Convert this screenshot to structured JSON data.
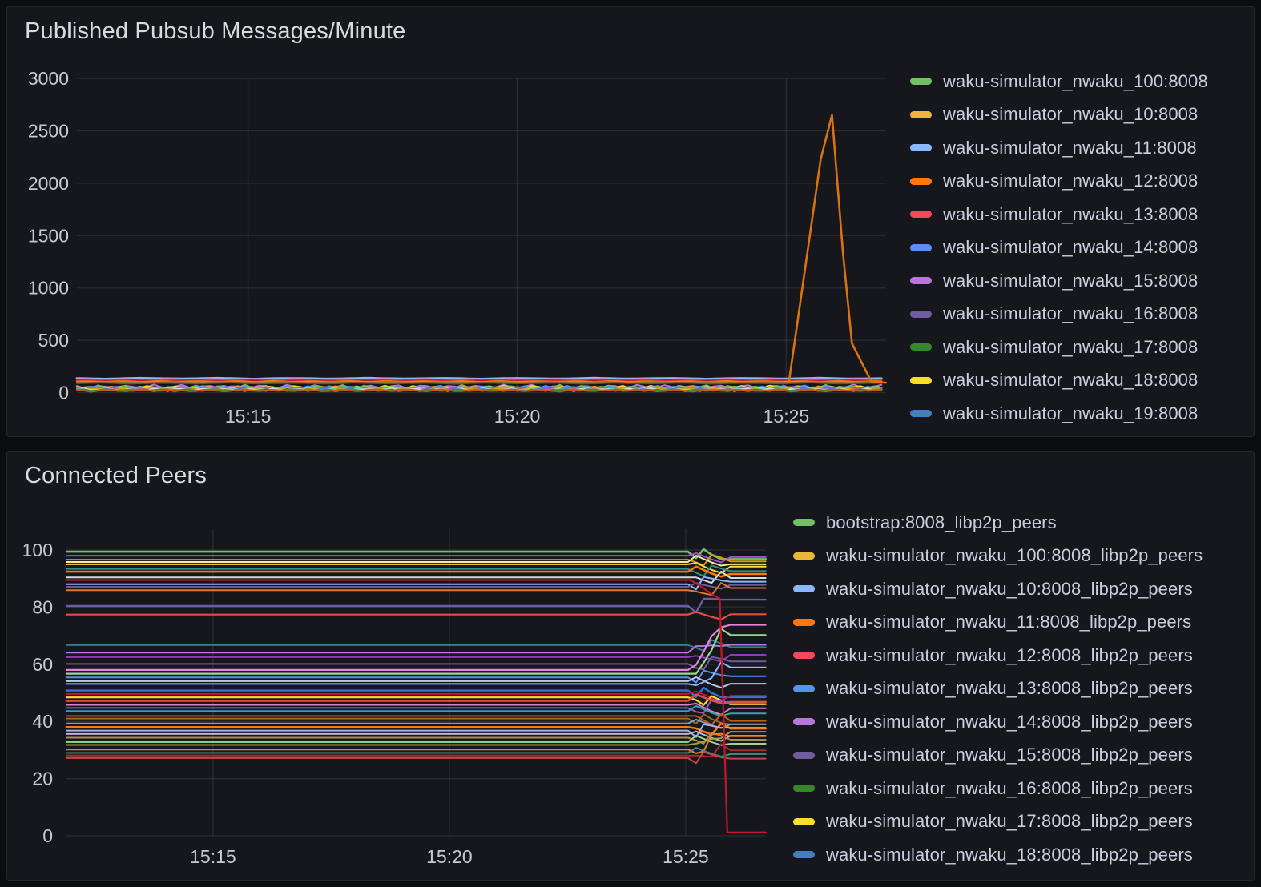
{
  "dashboard": {
    "background": "#0c0d10",
    "panel_background": "#16171d",
    "panel_border": "#24262c",
    "grid_color": "rgba(204,204,220,0.10)",
    "tick_text_color": "#c7c8d2",
    "legend_text_color": "#ccccdc",
    "title_text_color": "#d9dade"
  },
  "chart_data": [
    {
      "type": "line",
      "title": "Published Pubsub Messages/Minute",
      "xlabel": "",
      "ylabel": "",
      "ylim": [
        0,
        3000
      ],
      "y_ticks": [
        "0",
        "500",
        "1000",
        "1500",
        "2000",
        "2500",
        "3000"
      ],
      "y_tick_values": [
        0,
        500,
        1000,
        1500,
        2000,
        2500,
        3000
      ],
      "x_ticks": [
        {
          "t": 15,
          "label": "15:15"
        },
        {
          "t": 20,
          "label": "15:20"
        },
        {
          "t": 25,
          "label": "15:25"
        }
      ],
      "x_range_minutes_after_1500": [
        11.82,
        26.85
      ],
      "grid": true,
      "legend_position": "right",
      "legend": [
        {
          "label": "waku-simulator_nwaku_100:8008",
          "color": "#73BF69"
        },
        {
          "label": "waku-simulator_nwaku_10:8008",
          "color": "#EAB839"
        },
        {
          "label": "waku-simulator_nwaku_11:8008",
          "color": "#8AB8FF"
        },
        {
          "label": "waku-simulator_nwaku_12:8008",
          "color": "#FF780A"
        },
        {
          "label": "waku-simulator_nwaku_13:8008",
          "color": "#F2495C"
        },
        {
          "label": "waku-simulator_nwaku_14:8008",
          "color": "#5794F2"
        },
        {
          "label": "waku-simulator_nwaku_15:8008",
          "color": "#B877D9"
        },
        {
          "label": "waku-simulator_nwaku_16:8008",
          "color": "#705DA0"
        },
        {
          "label": "waku-simulator_nwaku_17:8008",
          "color": "#37872D"
        },
        {
          "label": "waku-simulator_nwaku_18:8008",
          "color": "#FADE2A"
        },
        {
          "label": "waku-simulator_nwaku_19:8008",
          "color": "#447EBC"
        }
      ],
      "note": "~100 node series publish 0-150 msg/min (dense band near 0); one orange series spikes to ~2650 msg/min between 15:25 and 15:26.5",
      "spike": {
        "series": "waku-simulator_nwaku_12:8008",
        "color": "#D9730F",
        "width": 2.6,
        "points": [
          [
            25.05,
            105
          ],
          [
            25.64,
            2230
          ],
          [
            25.85,
            2650
          ],
          [
            26.05,
            1350
          ],
          [
            26.22,
            470
          ],
          [
            26.58,
            105
          ],
          [
            26.85,
            95
          ]
        ]
      },
      "baseline_steady": [
        {
          "base": 135,
          "amp": 5,
          "period": 1.4,
          "phase": 0.2,
          "color": "#8AB8FF",
          "w": 2.8
        },
        {
          "base": 127,
          "amp": 12,
          "period": 0.8,
          "phase": 0.6,
          "color": "#D683CE",
          "w": 2.0
        },
        {
          "base": 121,
          "amp": 4,
          "period": 0.9,
          "phase": 0.1,
          "color": "#F2495C",
          "w": 2.2
        },
        {
          "base": 114,
          "amp": 4,
          "period": 1.1,
          "phase": 0.8,
          "color": "#C4162A",
          "w": 2.4
        },
        {
          "base": 106,
          "amp": 6,
          "period": 0.7,
          "phase": 0.4,
          "color": "#FF780A",
          "w": 2.2
        },
        {
          "base": 97,
          "amp": 7,
          "period": 1.0,
          "phase": 0.9,
          "color": "#8A7B39",
          "w": 2.0
        },
        {
          "base": 90,
          "amp": 6,
          "period": 1.2,
          "phase": 0.3,
          "color": "#7A4F2B",
          "w": 2.0
        }
      ],
      "baseline_jitter": [
        {
          "base": 55,
          "amp": 25,
          "period": 0.5,
          "phase": 0.0,
          "color": "#B877D9",
          "w": 2
        },
        {
          "base": 50,
          "amp": 28,
          "period": 0.45,
          "phase": 0.3,
          "color": "#73BF69",
          "w": 2
        },
        {
          "base": 45,
          "amp": 25,
          "period": 0.55,
          "phase": 0.6,
          "color": "#FADE2A",
          "w": 2
        },
        {
          "base": 48,
          "amp": 22,
          "period": 0.4,
          "phase": 0.15,
          "color": "#5794F2",
          "w": 2
        },
        {
          "base": 40,
          "amp": 25,
          "period": 0.6,
          "phase": 0.8,
          "color": "#FF9830",
          "w": 2
        },
        {
          "base": 42,
          "amp": 20,
          "period": 0.5,
          "phase": 0.45,
          "color": "#96D98D",
          "w": 2
        },
        {
          "base": 35,
          "amp": 22,
          "period": 0.42,
          "phase": 0.7,
          "color": "#E24D42",
          "w": 2
        },
        {
          "base": 38,
          "amp": 20,
          "period": 0.52,
          "phase": 0.9,
          "color": "#A352CC",
          "w": 2
        },
        {
          "base": 30,
          "amp": 18,
          "period": 0.47,
          "phase": 0.2,
          "color": "#6ED0E0",
          "w": 2
        },
        {
          "base": 32,
          "amp": 20,
          "period": 0.58,
          "phase": 0.55,
          "color": "#CCA300",
          "w": 2
        },
        {
          "base": 28,
          "amp": 16,
          "period": 0.44,
          "phase": 0.35,
          "color": "#D8D9DA",
          "w": 2
        },
        {
          "base": 25,
          "amp": 15,
          "period": 0.5,
          "phase": 0.75,
          "color": "#447EBC",
          "w": 2
        },
        {
          "base": 22,
          "amp": 14,
          "period": 0.38,
          "phase": 0.1,
          "color": "#37872D",
          "w": 2
        },
        {
          "base": 20,
          "amp": 13,
          "period": 0.62,
          "phase": 0.5,
          "color": "#C15C17",
          "w": 2
        }
      ]
    },
    {
      "type": "line",
      "title": "Connected Peers",
      "xlabel": "",
      "ylabel": "",
      "ylim": [
        0,
        105
      ],
      "y_ticks": [
        "0",
        "20",
        "40",
        "60",
        "80",
        "100"
      ],
      "y_tick_values": [
        0,
        20,
        40,
        60,
        80,
        100
      ],
      "x_ticks": [
        {
          "t": 15,
          "label": "15:15"
        },
        {
          "t": 20,
          "label": "15:20"
        },
        {
          "t": 25,
          "label": "15:25"
        }
      ],
      "x_range_minutes_after_1500": [
        11.9,
        26.69
      ],
      "grid": true,
      "legend_position": "right",
      "legend": [
        {
          "label": "bootstrap:8008_libp2p_peers",
          "color": "#73BF69"
        },
        {
          "label": "waku-simulator_nwaku_100:8008_libp2p_peers",
          "color": "#EAB839"
        },
        {
          "label": "waku-simulator_nwaku_10:8008_libp2p_peers",
          "color": "#8AB8FF"
        },
        {
          "label": "waku-simulator_nwaku_11:8008_libp2p_peers",
          "color": "#FF780A"
        },
        {
          "label": "waku-simulator_nwaku_12:8008_libp2p_peers",
          "color": "#F2495C"
        },
        {
          "label": "waku-simulator_nwaku_13:8008_libp2p_peers",
          "color": "#5794F2"
        },
        {
          "label": "waku-simulator_nwaku_14:8008_libp2p_peers",
          "color": "#B877D9"
        },
        {
          "label": "waku-simulator_nwaku_15:8008_libp2p_peers",
          "color": "#705DA0"
        },
        {
          "label": "waku-simulator_nwaku_16:8008_libp2p_peers",
          "color": "#37872D"
        },
        {
          "label": "waku-simulator_nwaku_17:8008_libp2p_peers",
          "color": "#FADE2A"
        },
        {
          "label": "waku-simulator_nwaku_18:8008_libp2p_peers",
          "color": "#447EBC"
        }
      ],
      "note": "Flat per-node peer counts (27-99) from 15:12 to ~15:25.1, reshuffle knot 15:25.1-15:26.0, one red series drops to ~1 at ~15:25.8",
      "transition": {
        "start": 25.05,
        "end": 25.95
      },
      "lines": [
        {
          "v1": 99.4,
          "v2": 96.8,
          "color": "#73BF69",
          "w": 2.6
        },
        {
          "v1": 98.0,
          "v2": 97.5,
          "color": "#A352CC",
          "w": 2
        },
        {
          "v1": 96.6,
          "v2": 96.0,
          "color": "#CCA300",
          "w": 2
        },
        {
          "v1": 95.8,
          "v2": 95.0,
          "color": "#F8E8A0",
          "w": 2
        },
        {
          "v1": 95.0,
          "v2": 94.2,
          "color": "#FADE2A",
          "w": 2
        },
        {
          "v1": 93.4,
          "v2": 92.6,
          "color": "#2F8E89",
          "w": 2
        },
        {
          "v1": 92.4,
          "v2": 91.6,
          "color": "#FF780A",
          "w": 2.6
        },
        {
          "v1": 90.4,
          "v2": 90.2,
          "color": "#D8D9DA",
          "w": 2
        },
        {
          "v1": 88.0,
          "v2": 88.9,
          "color": "#8AB8FF",
          "w": 2
        },
        {
          "v1": 87.1,
          "v2": 87.8,
          "color": "#705DA0",
          "w": 2
        },
        {
          "v1": 85.9,
          "v2": 86.7,
          "color": "#E8762A",
          "w": 2
        },
        {
          "v1": 80.4,
          "v2": 82.6,
          "color": "#6B5CA5",
          "w": 2.4
        },
        {
          "v1": 77.4,
          "v2": 77.5,
          "color": "#E24D42",
          "w": 2.2
        },
        {
          "v1": 66.7,
          "v2": 66.0,
          "color": "#2B7F8E",
          "w": 2
        },
        {
          "v1": 64.1,
          "v2": 66.8,
          "color": "#B877D9",
          "w": 2
        },
        {
          "v1": 62.5,
          "v2": 63.3,
          "color": "#8F3BB8",
          "w": 2
        },
        {
          "v1": 60.1,
          "v2": 61.0,
          "color": "#705DA0",
          "w": 2
        },
        {
          "v1": 58.0,
          "v2": 73.8,
          "color": "#E583D8",
          "w": 2.2
        },
        {
          "v1": 56.7,
          "v2": 70.2,
          "color": "#96D98D",
          "w": 2.2
        },
        {
          "v1": 55.4,
          "v2": 55.8,
          "color": "#5794F2",
          "w": 2
        },
        {
          "v1": 54.1,
          "v2": 53.2,
          "color": "#BCC8E8",
          "w": 2
        },
        {
          "v1": 53.1,
          "v2": 58.9,
          "color": "#8AB8FF",
          "w": 2
        },
        {
          "v1": 50.8,
          "v2": 48.5,
          "color": "#3274D9",
          "w": 2.4
        },
        {
          "v1": 49.6,
          "v2": 49.0,
          "color": "#C4162A",
          "w": 2
        },
        {
          "v1": 48.4,
          "v2": 46.0,
          "color": "#FADE2A",
          "w": 2.2
        },
        {
          "v1": 47.2,
          "v2": 46.8,
          "color": "#E24D42",
          "w": 2.6
        },
        {
          "v1": 45.8,
          "v2": 44.6,
          "color": "#D683CE",
          "w": 2
        },
        {
          "v1": 44.7,
          "v2": 46.2,
          "color": "#A352CC",
          "w": 2
        },
        {
          "v1": 43.6,
          "v2": 42.8,
          "color": "#37A2A8",
          "w": 2
        },
        {
          "v1": 41.9,
          "v2": 40.2,
          "color": "#C15C17",
          "w": 2
        },
        {
          "v1": 41.0,
          "v2": 39.0,
          "color": "#966A2D",
          "w": 2
        },
        {
          "v1": 39.3,
          "v2": 39.0,
          "color": "#82A0B8",
          "w": 2
        },
        {
          "v1": 38.0,
          "v2": 37.5,
          "color": "#FF780A",
          "w": 2.6
        },
        {
          "v1": 36.8,
          "v2": 37.8,
          "color": "#A5AEE0",
          "w": 2
        },
        {
          "v1": 35.6,
          "v2": 35.0,
          "color": "#C0B2D4",
          "w": 2
        },
        {
          "v1": 34.3,
          "v2": 33.6,
          "color": "#AD8A56",
          "w": 2
        },
        {
          "v1": 32.8,
          "v2": 32.2,
          "color": "#96D98D",
          "w": 2
        },
        {
          "v1": 31.8,
          "v2": 36.4,
          "color": "#A0A13A",
          "w": 2
        },
        {
          "v1": 30.2,
          "v2": 34.8,
          "color": "#E8832A",
          "w": 2
        },
        {
          "v1": 29.0,
          "v2": 28.6,
          "color": "#3E8E7E",
          "w": 2
        },
        {
          "v1": 28.1,
          "v2": 29.9,
          "color": "#A32C2C",
          "w": 2
        },
        {
          "v1": 27.2,
          "v2": 27.0,
          "color": "#C74545",
          "w": 2
        }
      ],
      "drop": {
        "color": "#C4162A",
        "width": 2.2,
        "points": [
          [
            11.9,
            89.5
          ],
          [
            25.1,
            89.5
          ],
          [
            25.3,
            87.5
          ],
          [
            25.6,
            84.0
          ],
          [
            25.72,
            83.0
          ],
          [
            25.88,
            1.2
          ],
          [
            26.69,
            1.2
          ]
        ]
      }
    }
  ]
}
